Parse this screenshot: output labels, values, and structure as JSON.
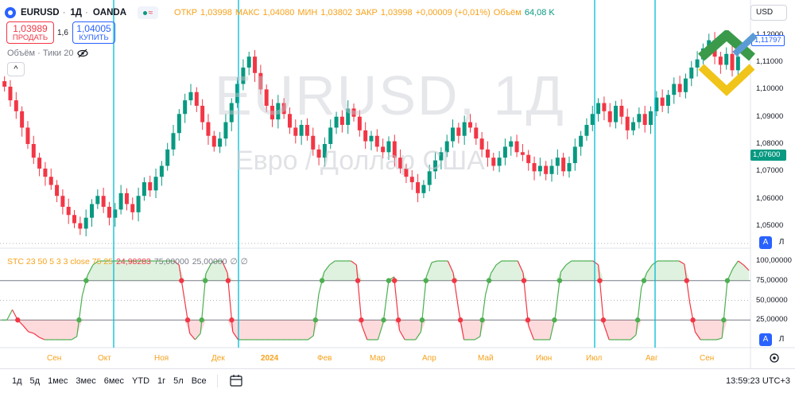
{
  "header": {
    "symbol": "EURUSD",
    "interval": "1Д",
    "broker": "OANDA",
    "separator": "·",
    "eye_glyph": "≈",
    "open_label": "ОТКР",
    "open": "1,03998",
    "high_label": "МАКС",
    "high": "1,04080",
    "low_label": "МИН",
    "low": "1,03802",
    "close_label": "ЗАКР",
    "close": "1,03998",
    "change": "+0,00009 (+0,01%)",
    "volume_label": "Объём",
    "volume": "64,08 K"
  },
  "trade": {
    "sell_price": "1,03989",
    "sell_label": "ПРОДАТЬ",
    "spread": "1,6",
    "buy_price": "1,04005",
    "buy_label": "КУПИТЬ"
  },
  "volume_indicator": {
    "label": "Объём · Тики 20"
  },
  "collapse_glyph": "^",
  "watermark": {
    "symbol": "EURUSD, 1Д",
    "description": "Евро / Доллар США"
  },
  "currency_button": "USD",
  "price_axis": {
    "labels": [
      "1,12000",
      "1,11000",
      "1,10000",
      "1,09000",
      "1,08000",
      "1,07000",
      "1,06000",
      "1,05000"
    ],
    "current_blue": "1,11797",
    "current_green": "1,07600"
  },
  "scale_buttons": {
    "auto": "A",
    "log": "Л"
  },
  "stc": {
    "name": "STC 23 50 5 3 3 close 75 25",
    "value": "24,98283",
    "upper": "75,00000",
    "lower": "25,00000",
    "extra1": "∅",
    "extra2": "∅",
    "axis_labels": [
      "100,00000",
      "75,00000",
      "50,00000",
      "25,00000"
    ]
  },
  "time_axis": {
    "labels": [
      "Сен",
      "Окт",
      "Ноя",
      "Дек",
      "2024",
      "Фев",
      "Мар",
      "Апр",
      "Май",
      "Июн",
      "Июл",
      "Авг",
      "Сен"
    ]
  },
  "toolbar": {
    "timeframes": [
      "1д",
      "5д",
      "1мес",
      "3мес",
      "6мес",
      "YTD",
      "1г",
      "5л",
      "Все"
    ],
    "clock": "13:59:23 UTC+3"
  },
  "colors": {
    "up": "#089981",
    "down": "#f23645",
    "stc": "#f7a21b",
    "vline": "#00bcd4",
    "stc_up": "#4caf50"
  },
  "chart_data": {
    "type": "candlestick",
    "title": "EURUSD, 1Д",
    "price_ylim": [
      1.043,
      1.124
    ],
    "price_series": [
      1.101,
      1.096,
      1.092,
      1.086,
      1.08,
      1.075,
      1.071,
      1.068,
      1.065,
      1.061,
      1.057,
      1.054,
      1.051,
      1.049,
      1.053,
      1.058,
      1.061,
      1.057,
      1.053,
      1.056,
      1.062,
      1.058,
      1.055,
      1.061,
      1.066,
      1.063,
      1.068,
      1.072,
      1.078,
      1.084,
      1.091,
      1.096,
      1.099,
      1.094,
      1.088,
      1.083,
      1.079,
      1.082,
      1.088,
      1.095,
      1.102,
      1.108,
      1.112,
      1.106,
      1.1,
      1.094,
      1.089,
      1.095,
      1.091,
      1.086,
      1.083,
      1.087,
      1.083,
      1.078,
      1.075,
      1.08,
      1.086,
      1.09,
      1.087,
      1.093,
      1.09,
      1.085,
      1.081,
      1.083,
      1.079,
      1.077,
      1.081,
      1.075,
      1.071,
      1.068,
      1.066,
      1.062,
      1.065,
      1.07,
      1.074,
      1.077,
      1.081,
      1.086,
      1.083,
      1.088,
      1.086,
      1.082,
      1.078,
      1.075,
      1.072,
      1.075,
      1.079,
      1.081,
      1.077,
      1.076,
      1.073,
      1.07,
      1.072,
      1.069,
      1.072,
      1.075,
      1.07,
      1.073,
      1.079,
      1.083,
      1.087,
      1.091,
      1.095,
      1.092,
      1.088,
      1.094,
      1.09,
      1.085,
      1.088,
      1.091,
      1.087,
      1.092,
      1.097,
      1.094,
      1.098,
      1.102,
      1.099,
      1.104,
      1.108,
      1.111,
      1.115,
      1.118,
      1.112,
      1.109,
      1.113,
      1.107,
      1.112
    ],
    "stc_ylim": [
      0,
      100
    ],
    "stc_series": [
      25,
      25,
      38,
      25,
      18,
      10,
      8,
      3,
      0,
      0,
      0,
      0,
      0,
      0,
      4,
      56,
      82,
      95,
      100,
      100,
      100,
      100,
      100,
      100,
      100,
      100,
      100,
      100,
      100,
      100,
      100,
      100,
      100,
      95,
      52,
      8,
      0,
      8,
      84,
      97,
      100,
      100,
      85,
      10,
      0,
      0,
      0,
      0,
      0,
      0,
      0,
      0,
      0,
      0,
      0,
      0,
      0,
      0,
      5,
      58,
      86,
      95,
      100,
      100,
      100,
      100,
      95,
      18,
      0,
      0,
      0,
      22,
      75,
      80,
      12,
      0,
      0,
      0,
      10,
      80,
      98,
      100,
      100,
      100,
      85,
      38,
      0,
      0,
      0,
      4,
      57,
      84,
      95,
      100,
      100,
      100,
      100,
      85,
      18,
      0,
      0,
      0,
      0,
      30,
      86,
      95,
      100,
      100,
      100,
      100,
      100,
      95,
      20,
      0,
      0,
      0,
      0,
      0,
      6,
      66,
      85,
      95,
      100,
      100,
      100,
      100,
      100,
      96,
      47,
      10,
      0,
      0,
      0,
      0,
      2,
      75,
      90,
      100,
      95,
      88
    ],
    "bands": [
      75,
      50,
      25
    ]
  }
}
